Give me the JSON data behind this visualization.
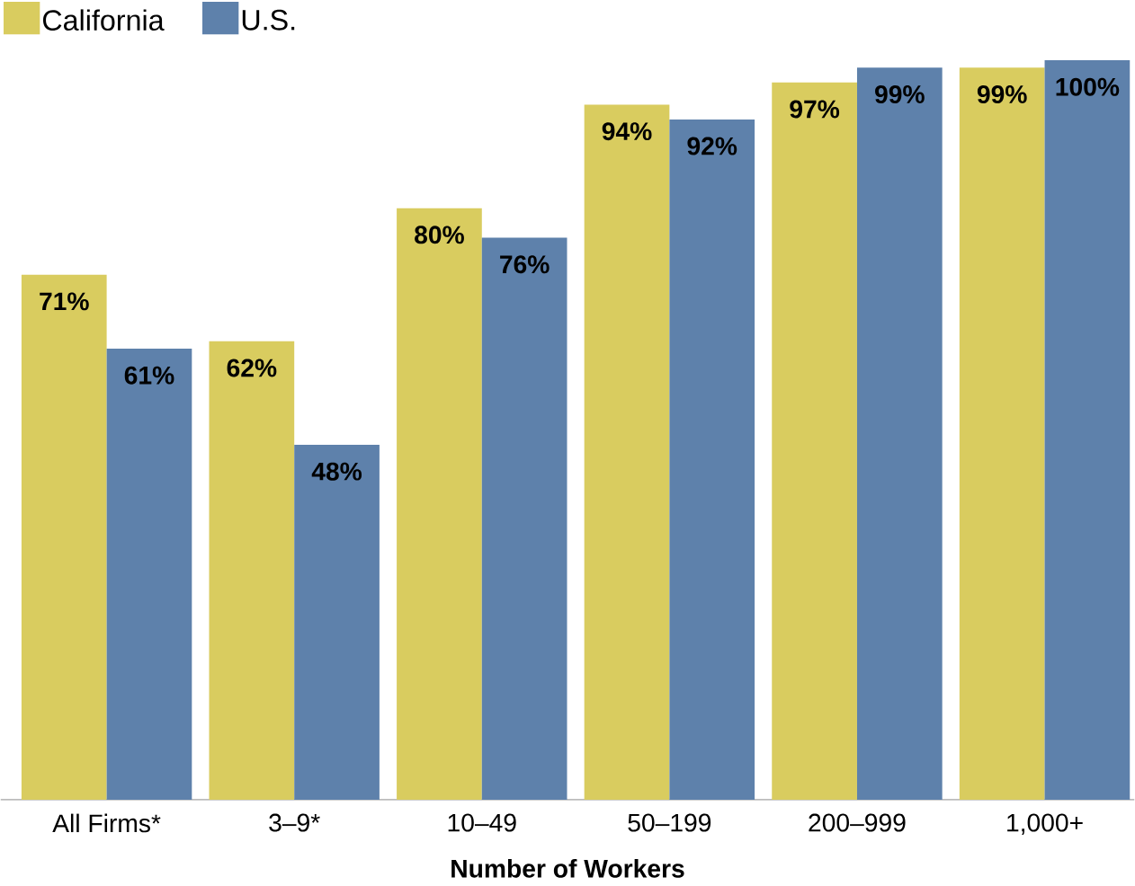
{
  "chart_data": {
    "type": "bar",
    "xlabel": "Number of Workers",
    "categories": [
      "All Firms*",
      "3–9*",
      "10–49",
      "50–199",
      "200–999",
      "1,000+"
    ],
    "series": [
      {
        "name": "California",
        "color": "#d9cc5f",
        "values": [
          71,
          62,
          80,
          94,
          97,
          99
        ],
        "value_labels": [
          "71%",
          "62%",
          "80%",
          "94%",
          "97%",
          "99%"
        ]
      },
      {
        "name": "U.S.",
        "color": "#5e81ab",
        "values": [
          61,
          48,
          76,
          92,
          99,
          100
        ],
        "value_labels": [
          "61%",
          "48%",
          "76%",
          "92%",
          "99%",
          "100%"
        ]
      }
    ],
    "legend": "top left"
  }
}
